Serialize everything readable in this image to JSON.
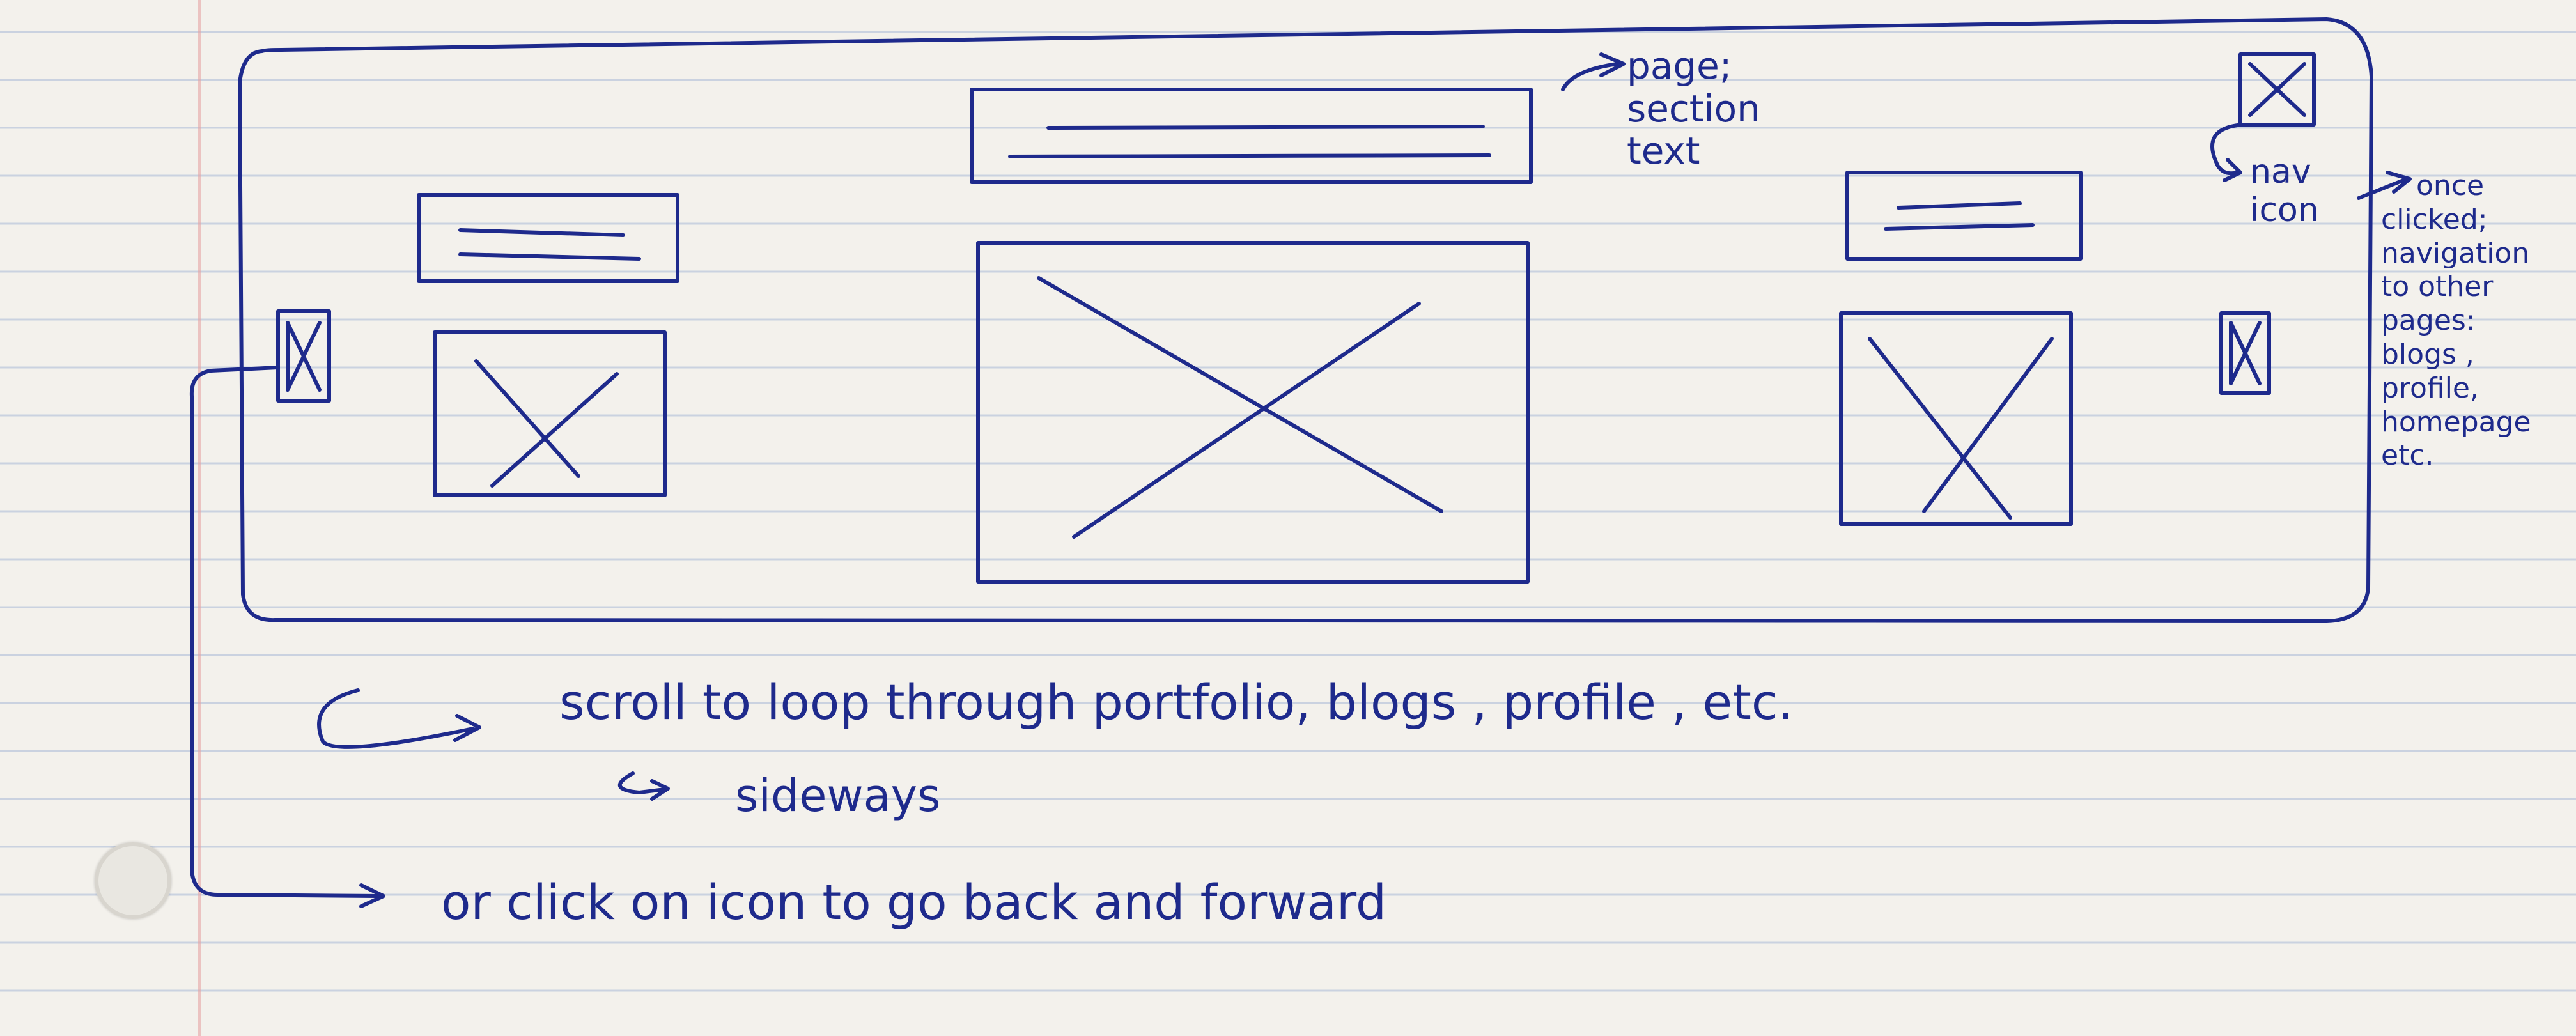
{
  "annotations": {
    "page_section_text": [
      "page;",
      "section",
      "text"
    ],
    "nav_icon": [
      "nav",
      "icon"
    ],
    "once_clicked": [
      "once",
      "clicked;",
      "navigation",
      "to other",
      "pages:",
      "blogs ,",
      "profile,",
      "homepage",
      "etc."
    ],
    "scroll_line": "scroll to loop through portfolio, blogs , profile , etc.",
    "sideways": "sideways",
    "click_line": "or click on icon to go back and forward"
  },
  "colors": {
    "ink": "#1e2a8c",
    "paper": "#f3f1ec",
    "rule": "#b9c6dc",
    "margin": "#e6a5a5"
  }
}
